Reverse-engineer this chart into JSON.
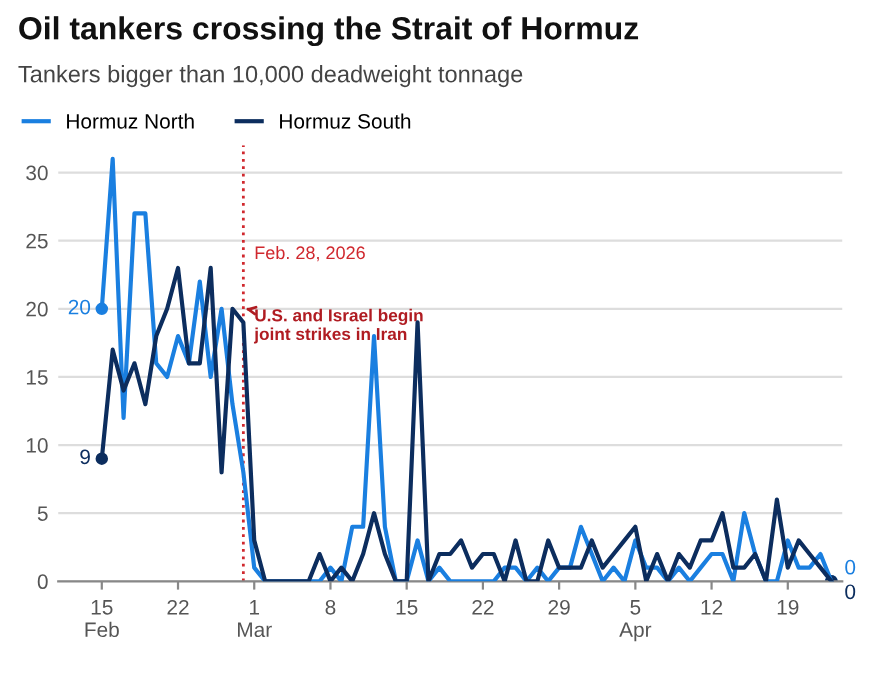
{
  "chart_data": {
    "type": "line",
    "title": "Oil tankers crossing the Strait of Hormuz",
    "subtitle": "Tankers bigger than 10,000 deadweight tonnage",
    "x": [
      "2026-02-15",
      "2026-02-16",
      "2026-02-17",
      "2026-02-18",
      "2026-02-19",
      "2026-02-20",
      "2026-02-21",
      "2026-02-22",
      "2026-02-23",
      "2026-02-24",
      "2026-02-25",
      "2026-02-26",
      "2026-02-27",
      "2026-02-28",
      "2026-03-01",
      "2026-03-02",
      "2026-03-03",
      "2026-03-04",
      "2026-03-05",
      "2026-03-06",
      "2026-03-07",
      "2026-03-08",
      "2026-03-09",
      "2026-03-10",
      "2026-03-11",
      "2026-03-12",
      "2026-03-13",
      "2026-03-14",
      "2026-03-15",
      "2026-03-16",
      "2026-03-17",
      "2026-03-18",
      "2026-03-19",
      "2026-03-20",
      "2026-03-21",
      "2026-03-22",
      "2026-03-23",
      "2026-03-24",
      "2026-03-25",
      "2026-03-26",
      "2026-03-27",
      "2026-03-28",
      "2026-03-29",
      "2026-03-30",
      "2026-03-31",
      "2026-04-01",
      "2026-04-02",
      "2026-04-03",
      "2026-04-04",
      "2026-04-05",
      "2026-04-06",
      "2026-04-07",
      "2026-04-08",
      "2026-04-09",
      "2026-04-10",
      "2026-04-11",
      "2026-04-12",
      "2026-04-13",
      "2026-04-14",
      "2026-04-15",
      "2026-04-16",
      "2026-04-17",
      "2026-04-18",
      "2026-04-19",
      "2026-04-20",
      "2026-04-21",
      "2026-04-22",
      "2026-04-23"
    ],
    "series": [
      {
        "name": "Hormuz North",
        "color": "#1a7fe0",
        "values": [
          20,
          31,
          12,
          27,
          27,
          16,
          15,
          18,
          16,
          22,
          15,
          20,
          13,
          8,
          1,
          0,
          0,
          0,
          0,
          0,
          0,
          1,
          0,
          4,
          4,
          18,
          4,
          0,
          0,
          3,
          0,
          1,
          0,
          0,
          0,
          0,
          0,
          1,
          1,
          0,
          1,
          0,
          1,
          1,
          4,
          2,
          0,
          1,
          0,
          3,
          1,
          1,
          0,
          1,
          0,
          1,
          2,
          2,
          0,
          5,
          2,
          0,
          0,
          3,
          1,
          1,
          2,
          0
        ],
        "value_labels": [
          "20",
          null,
          null,
          null,
          null,
          null,
          null,
          null,
          null,
          null,
          null,
          null,
          null,
          null,
          null,
          null,
          null,
          null,
          null,
          null,
          null,
          null,
          null,
          null,
          null,
          null,
          null,
          null,
          null,
          null,
          null,
          null,
          null,
          null,
          null,
          null,
          null,
          null,
          null,
          null,
          null,
          null,
          null,
          null,
          null,
          null,
          null,
          null,
          null,
          null,
          null,
          null,
          null,
          null,
          null,
          null,
          null,
          null,
          null,
          null,
          null,
          null,
          null,
          null,
          null,
          null,
          null,
          "0"
        ]
      },
      {
        "name": "Hormuz South",
        "color": "#0c2d5e",
        "values": [
          9,
          17,
          14,
          16,
          13,
          18,
          20,
          23,
          16,
          16,
          23,
          8,
          20,
          19,
          3,
          0,
          0,
          0,
          0,
          0,
          2,
          0,
          1,
          0,
          2,
          5,
          2,
          0,
          0,
          19,
          0,
          2,
          2,
          3,
          1,
          2,
          2,
          0,
          3,
          0,
          0,
          3,
          1,
          1,
          1,
          3,
          1,
          2,
          3,
          4,
          0,
          2,
          0,
          2,
          1,
          3,
          3,
          5,
          1,
          1,
          2,
          0,
          6,
          1,
          3,
          2,
          1,
          0
        ],
        "value_labels": [
          "9",
          null,
          null,
          null,
          null,
          null,
          null,
          null,
          null,
          null,
          null,
          null,
          null,
          null,
          null,
          null,
          null,
          null,
          null,
          null,
          null,
          null,
          null,
          null,
          null,
          null,
          null,
          null,
          null,
          null,
          null,
          null,
          null,
          null,
          null,
          null,
          null,
          null,
          null,
          null,
          null,
          null,
          null,
          null,
          null,
          null,
          null,
          null,
          null,
          null,
          null,
          null,
          null,
          null,
          null,
          null,
          null,
          null,
          null,
          null,
          null,
          null,
          null,
          null,
          null,
          null,
          null,
          "0"
        ]
      }
    ],
    "xlim": [
      "2026-02-11",
      "2026-04-24"
    ],
    "xticks": [
      {
        "value": "2026-02-15",
        "label": "15\nFeb"
      },
      {
        "value": "2026-02-22",
        "label": "22"
      },
      {
        "value": "2026-03-01",
        "label": "1\nMar"
      },
      {
        "value": "2026-03-08",
        "label": "8"
      },
      {
        "value": "2026-03-15",
        "label": "15"
      },
      {
        "value": "2026-03-22",
        "label": "22"
      },
      {
        "value": "2026-03-29",
        "label": "29"
      },
      {
        "value": "2026-04-05",
        "label": "5\nApr"
      },
      {
        "value": "2026-04-12",
        "label": "12"
      },
      {
        "value": "2026-04-19",
        "label": "19"
      }
    ],
    "ylim": [
      0,
      32
    ],
    "yticks": [
      0,
      5,
      10,
      15,
      20,
      25,
      30
    ],
    "grid": "y",
    "legend": "top left",
    "ref_lines": [
      {
        "axis": "x",
        "value": "2026-02-28",
        "color": "#d0282e",
        "line_style": "dotted",
        "label": "Feb. 28, 2026"
      }
    ],
    "annotations": [
      {
        "text": "U.S. and Israel begin\njoint strikes in Iran",
        "x": "2026-02-28",
        "y": 20
      }
    ]
  }
}
